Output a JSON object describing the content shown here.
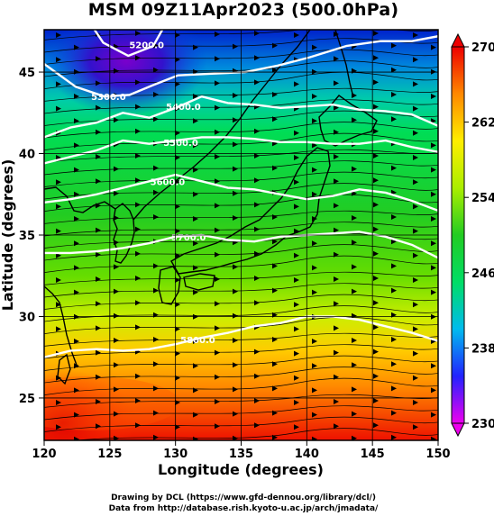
{
  "title": "MSM 09Z11Apr2023 (500.0hPa)",
  "xlabel": "Longitude (degrees)",
  "ylabel": "Latitude  (degrees)",
  "credits": [
    "Drawing by DCL (https://www.gfd-dennou.org/library/dcl/)",
    "Data from http://database.rish.kyoto-u.ac.jp/arch/jmadata/"
  ],
  "chart_data": {
    "type": "map",
    "xlim": [
      120,
      150
    ],
    "ylim": [
      22.4,
      47.6
    ],
    "x_ticks": [
      {
        "value": 120,
        "label": "120"
      },
      {
        "value": 125,
        "label": "125"
      },
      {
        "value": 130,
        "label": "130"
      },
      {
        "value": 135,
        "label": "135"
      },
      {
        "value": 140,
        "label": "140"
      },
      {
        "value": 145,
        "label": "145"
      },
      {
        "value": 150,
        "label": "150"
      }
    ],
    "y_ticks": [
      {
        "value": 25,
        "label": "25"
      },
      {
        "value": 30,
        "label": "30"
      },
      {
        "value": 35,
        "label": "35"
      },
      {
        "value": 40,
        "label": "40"
      },
      {
        "value": 45,
        "label": "45"
      }
    ],
    "colorbar": {
      "range": [
        230,
        270
      ],
      "ticks": [
        {
          "value": 230,
          "label": "230"
        },
        {
          "value": 238,
          "label": "238"
        },
        {
          "value": 246,
          "label": "246"
        },
        {
          "value": 254,
          "label": "254"
        },
        {
          "value": 262,
          "label": "262"
        },
        {
          "value": 270,
          "label": "270"
        }
      ],
      "colors": [
        "#ee00ee",
        "#2222ff",
        "#00bbee",
        "#00dd66",
        "#22cc22",
        "#aaee00",
        "#ffee00",
        "#ff8800",
        "#ee0000"
      ]
    },
    "contours": [
      {
        "label": "5200.0",
        "points": [
          [
            123.0,
            48.6
          ],
          [
            124.5,
            46.8
          ],
          [
            126.4,
            46.0
          ],
          [
            128.3,
            46.6
          ],
          [
            129.7,
            48.6
          ]
        ],
        "label_at": [
          127.8,
          46.7
        ]
      },
      {
        "label": "5300.0",
        "points": [
          [
            120.0,
            45.5
          ],
          [
            122.4,
            44.1
          ],
          [
            124.6,
            43.5
          ],
          [
            126.5,
            43.6
          ],
          [
            128.3,
            44.2
          ],
          [
            130.2,
            44.8
          ],
          [
            132.8,
            44.9
          ],
          [
            135.3,
            45.0
          ],
          [
            137.8,
            45.4
          ],
          [
            140.2,
            45.9
          ],
          [
            143.0,
            46.6
          ],
          [
            145.6,
            46.9
          ],
          [
            148.0,
            46.9
          ],
          [
            150.0,
            47.2
          ]
        ],
        "label_at": [
          124.9,
          43.5
        ]
      },
      {
        "label": "5400.0",
        "points": [
          [
            120.0,
            41.0
          ],
          [
            122.0,
            41.6
          ],
          [
            124.0,
            41.9
          ],
          [
            126.0,
            42.5
          ],
          [
            128.0,
            42.2
          ],
          [
            130.0,
            42.8
          ],
          [
            132.0,
            43.5
          ],
          [
            134.0,
            43.1
          ],
          [
            136.0,
            43.0
          ],
          [
            138.0,
            42.8
          ],
          [
            140.0,
            42.9
          ],
          [
            142.0,
            43.0
          ],
          [
            144.0,
            42.7
          ],
          [
            146.0,
            42.6
          ],
          [
            148.0,
            42.4
          ],
          [
            150.0,
            41.7
          ]
        ],
        "label_at": [
          130.6,
          42.9
        ]
      },
      {
        "label": "5500.0",
        "points": [
          [
            120.0,
            39.4
          ],
          [
            122.0,
            39.8
          ],
          [
            124.0,
            40.2
          ],
          [
            126.0,
            40.8
          ],
          [
            128.0,
            40.6
          ],
          [
            130.0,
            40.8
          ],
          [
            132.0,
            41.0
          ],
          [
            134.0,
            41.0
          ],
          [
            136.0,
            40.9
          ],
          [
            138.0,
            40.7
          ],
          [
            140.0,
            40.7
          ],
          [
            142.0,
            40.6
          ],
          [
            144.0,
            40.6
          ],
          [
            146.0,
            40.8
          ],
          [
            148.0,
            40.4
          ],
          [
            150.0,
            40.1
          ]
        ],
        "label_at": [
          130.4,
          40.7
        ]
      },
      {
        "label": "5600.0",
        "points": [
          [
            120.0,
            37.0
          ],
          [
            122.0,
            37.2
          ],
          [
            124.0,
            37.5
          ],
          [
            126.0,
            37.9
          ],
          [
            128.0,
            38.3
          ],
          [
            130.0,
            38.7
          ],
          [
            132.0,
            38.3
          ],
          [
            134.0,
            37.9
          ],
          [
            136.0,
            37.8
          ],
          [
            138.0,
            37.5
          ],
          [
            140.0,
            37.2
          ],
          [
            142.0,
            37.4
          ],
          [
            144.0,
            37.8
          ],
          [
            146.0,
            37.6
          ],
          [
            148.0,
            37.1
          ],
          [
            150.0,
            36.5
          ]
        ],
        "label_at": [
          129.4,
          38.3
        ]
      },
      {
        "label": "5700.0",
        "points": [
          [
            120.0,
            33.9
          ],
          [
            122.0,
            33.9
          ],
          [
            124.0,
            34.0
          ],
          [
            126.0,
            34.2
          ],
          [
            128.0,
            34.5
          ],
          [
            130.0,
            34.9
          ],
          [
            132.0,
            35.0
          ],
          [
            134.0,
            34.7
          ],
          [
            136.0,
            34.6
          ],
          [
            138.0,
            34.9
          ],
          [
            140.0,
            35.0
          ],
          [
            142.0,
            35.1
          ],
          [
            144.0,
            35.2
          ],
          [
            146.0,
            34.9
          ],
          [
            148.0,
            34.4
          ],
          [
            150.0,
            33.6
          ]
        ],
        "label_at": [
          131.0,
          34.9
        ]
      },
      {
        "label": "5800.0",
        "points": [
          [
            120.0,
            27.5
          ],
          [
            122.0,
            27.9
          ],
          [
            124.0,
            28.0
          ],
          [
            126.0,
            27.9
          ],
          [
            128.0,
            28.0
          ],
          [
            130.0,
            28.3
          ],
          [
            132.0,
            28.7
          ],
          [
            134.0,
            29.0
          ],
          [
            136.0,
            29.4
          ],
          [
            138.0,
            29.6
          ],
          [
            140.0,
            30.0
          ],
          [
            142.0,
            30.0
          ],
          [
            144.0,
            29.8
          ],
          [
            146.0,
            29.4
          ],
          [
            148.0,
            29.0
          ],
          [
            150.0,
            28.5
          ]
        ],
        "label_at": [
          131.7,
          28.6
        ]
      }
    ]
  }
}
